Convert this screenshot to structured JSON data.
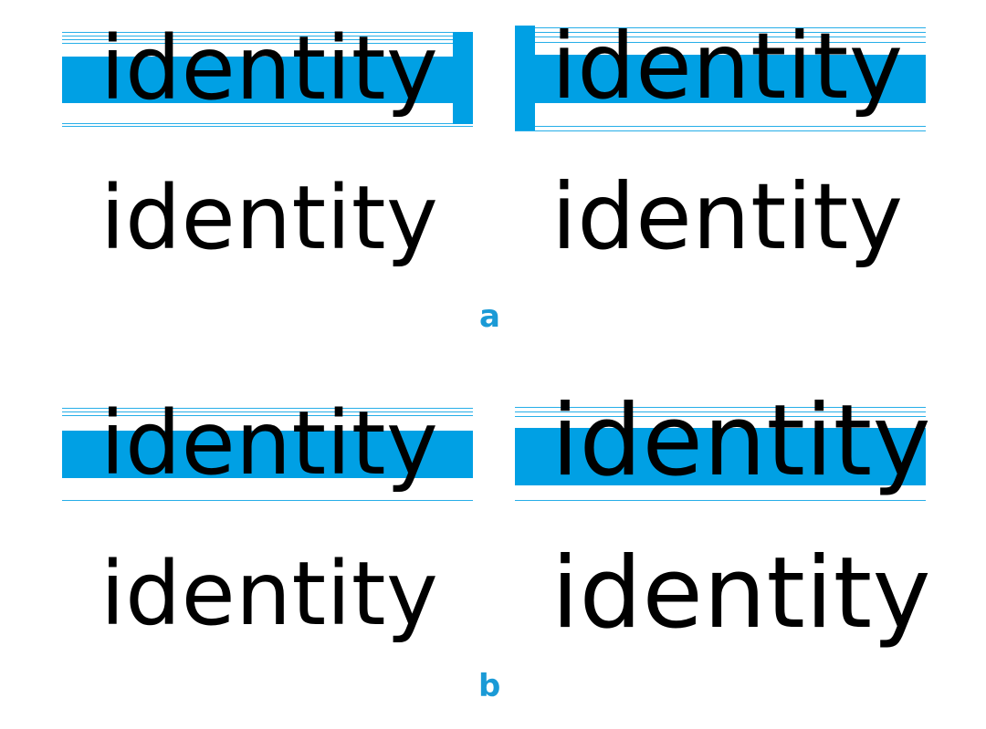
{
  "figure": {
    "colors": {
      "highlight": "#00a0e4",
      "label": "#1a9ad6",
      "text": "#000000",
      "background": "#ffffff"
    },
    "section_a": {
      "label": "a",
      "left_overlay_word": "identity",
      "left_plain_word": "identity",
      "right_overlay_word": "identity",
      "right_plain_word": "identity"
    },
    "section_b": {
      "label": "b",
      "left_overlay_word": "identity",
      "left_plain_word": "identity",
      "right_overlay_word": "identity",
      "right_plain_word": "identity"
    }
  }
}
